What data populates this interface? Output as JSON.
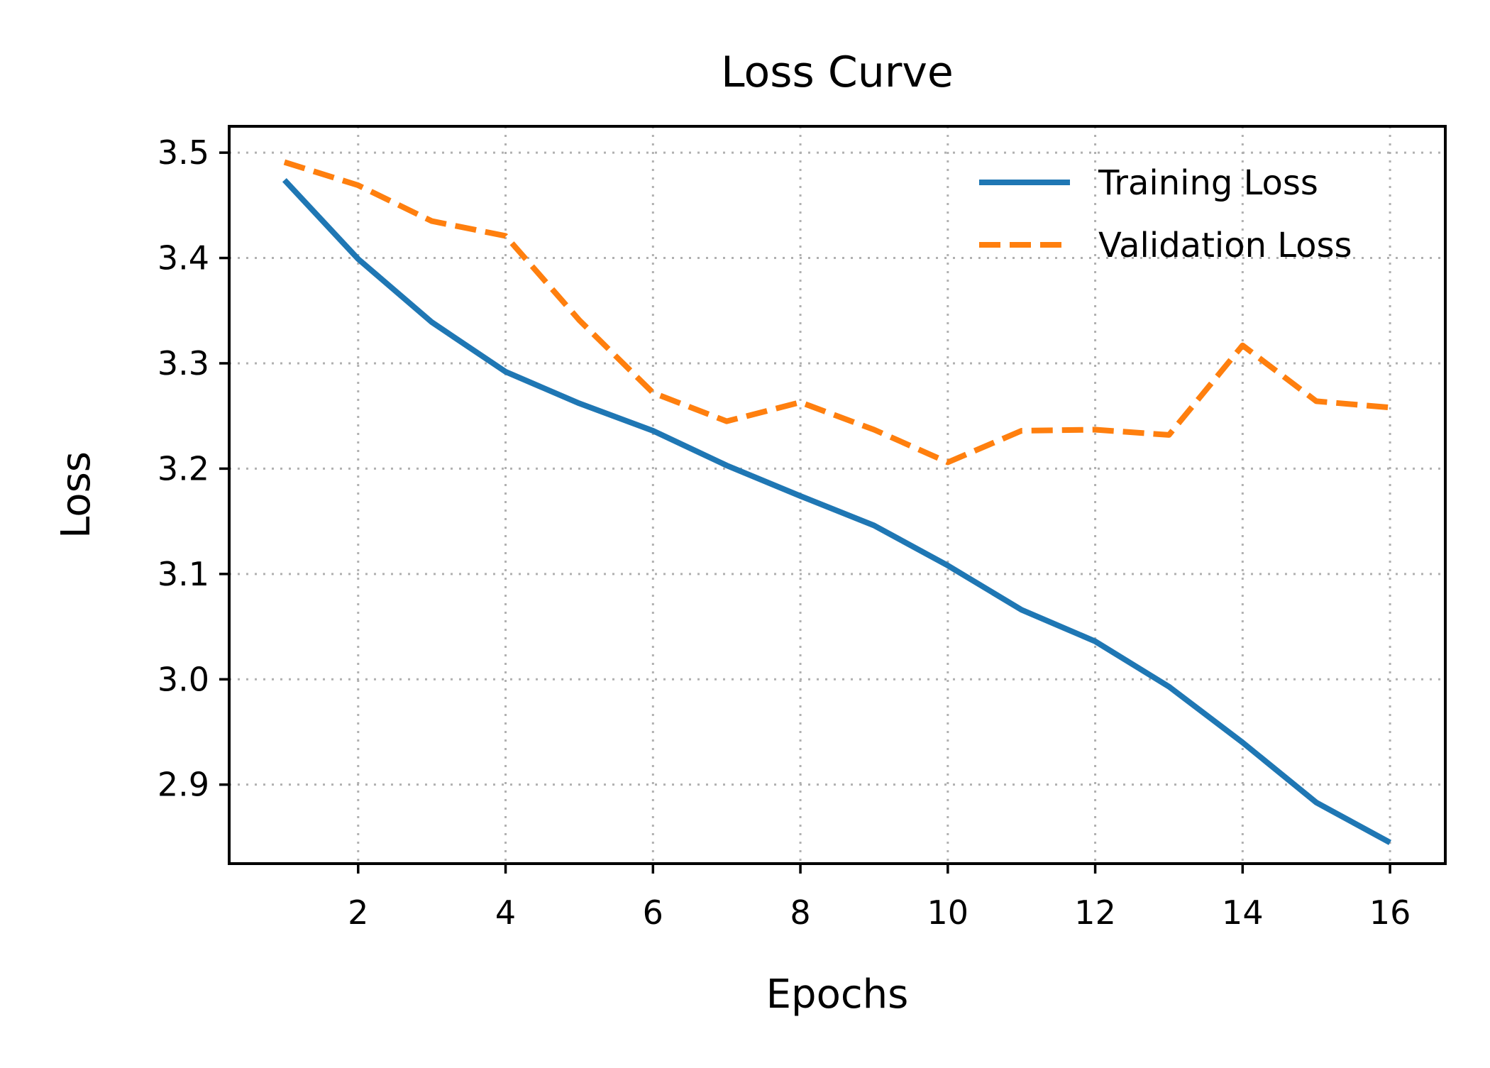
{
  "chart_data": {
    "type": "line",
    "title": "Loss Curve",
    "xlabel": "Epochs",
    "ylabel": "Loss",
    "x": [
      1,
      2,
      3,
      4,
      5,
      6,
      7,
      8,
      9,
      10,
      11,
      12,
      13,
      14,
      15,
      16
    ],
    "xlim": [
      0.25,
      16.75
    ],
    "ylim": [
      2.825,
      3.525
    ],
    "xticks": [
      2,
      4,
      6,
      8,
      10,
      12,
      14,
      16
    ],
    "yticks": [
      2.9,
      3.0,
      3.1,
      3.2,
      3.3,
      3.4,
      3.5
    ],
    "ytick_labels": [
      "2.9",
      "3.0",
      "3.1",
      "3.2",
      "3.3",
      "3.4",
      "3.5"
    ],
    "grid": true,
    "legend_position": "top-right",
    "series": [
      {
        "name": "Training Loss",
        "color": "#1f77b4",
        "line_style": "solid",
        "values": [
          3.474,
          3.399,
          3.339,
          3.292,
          3.262,
          3.236,
          3.203,
          3.174,
          3.146,
          3.108,
          3.066,
          3.036,
          2.993,
          2.94,
          2.883,
          2.845
        ]
      },
      {
        "name": "Validation Loss",
        "color": "#ff7f0e",
        "line_style": "dashed",
        "values": [
          3.491,
          3.469,
          3.435,
          3.421,
          3.341,
          3.272,
          3.245,
          3.263,
          3.237,
          3.206,
          3.236,
          3.237,
          3.232,
          3.317,
          3.264,
          3.258
        ]
      }
    ]
  }
}
